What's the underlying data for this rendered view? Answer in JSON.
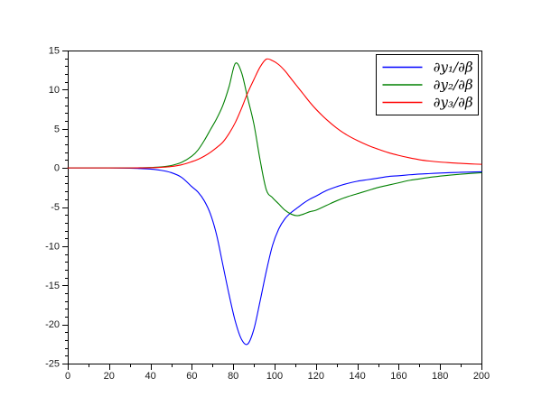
{
  "figure": {
    "background": "#ffffff",
    "frame_color": "#000000",
    "tick_label_color": "#1a1a1a"
  },
  "chart_data": {
    "type": "line",
    "title": "",
    "xlabel": "",
    "ylabel": "",
    "xlim": [
      0,
      200
    ],
    "ylim": [
      -25,
      15
    ],
    "x_major_tick_step": 20,
    "x_minor_tick_step": 10,
    "y_major_tick_step": 5,
    "y_minor_tick_step": 1,
    "x_tick_labels": [
      "0",
      "20",
      "40",
      "60",
      "80",
      "100",
      "120",
      "140",
      "160",
      "180",
      "200"
    ],
    "y_tick_labels": [
      "15",
      "10",
      "5",
      "0",
      "-5",
      "-10",
      "-15",
      "-20",
      "-25"
    ],
    "grid": false,
    "legend": {
      "position": "top-right",
      "entries": [
        {
          "label": "∂y₁/∂β",
          "color": "#0000ff"
        },
        {
          "label": "∂y₂/∂β",
          "color": "#008000"
        },
        {
          "label": "∂y₃/∂β",
          "color": "#ff0000"
        }
      ]
    },
    "x": [
      0,
      10,
      20,
      30,
      35,
      40,
      45,
      50,
      55,
      60,
      63,
      66,
      69,
      72,
      75,
      78,
      81,
      84,
      87,
      90,
      93,
      96,
      99,
      102,
      105,
      108,
      111,
      114,
      117,
      120,
      125,
      130,
      135,
      140,
      145,
      150,
      155,
      160,
      165,
      170,
      175,
      180,
      185,
      190,
      195,
      200
    ],
    "series": [
      {
        "name": "∂y₁/∂β",
        "color": "#0000ff",
        "values": [
          0,
          0,
          0,
          -0.03,
          -0.08,
          -0.15,
          -0.3,
          -0.6,
          -1.2,
          -2.4,
          -3.1,
          -4.2,
          -5.9,
          -8.6,
          -12.4,
          -16.2,
          -19.6,
          -21.9,
          -22.5,
          -20.6,
          -17.0,
          -13.2,
          -9.9,
          -7.8,
          -6.5,
          -5.7,
          -5.1,
          -4.5,
          -4.0,
          -3.6,
          -2.9,
          -2.4,
          -2.0,
          -1.7,
          -1.5,
          -1.3,
          -1.1,
          -1.0,
          -0.88,
          -0.78,
          -0.72,
          -0.66,
          -0.6,
          -0.56,
          -0.52,
          -0.5
        ]
      },
      {
        "name": "∂y₂/∂β",
        "color": "#008000",
        "values": [
          0,
          0,
          0,
          0,
          0.02,
          0.05,
          0.12,
          0.3,
          0.7,
          1.5,
          2.3,
          3.5,
          4.9,
          6.3,
          8.0,
          10.4,
          13.35,
          12.2,
          8.9,
          5.6,
          1.0,
          -2.8,
          -3.8,
          -4.6,
          -5.4,
          -5.9,
          -6.1,
          -5.9,
          -5.6,
          -5.4,
          -4.8,
          -4.2,
          -3.7,
          -3.3,
          -2.9,
          -2.5,
          -2.2,
          -1.9,
          -1.6,
          -1.4,
          -1.2,
          -1.05,
          -0.92,
          -0.8,
          -0.7,
          -0.62
        ]
      },
      {
        "name": "∂y₃/∂β",
        "color": "#ff0000",
        "values": [
          0,
          0,
          0,
          0,
          0.01,
          0.02,
          0.08,
          0.18,
          0.4,
          0.8,
          1.1,
          1.5,
          2.0,
          2.6,
          3.3,
          4.4,
          5.8,
          7.6,
          9.6,
          11.3,
          12.9,
          13.9,
          13.7,
          13.2,
          12.4,
          11.4,
          10.4,
          9.4,
          8.4,
          7.5,
          6.2,
          5.1,
          4.2,
          3.5,
          2.9,
          2.4,
          1.95,
          1.6,
          1.3,
          1.05,
          0.88,
          0.75,
          0.66,
          0.58,
          0.51,
          0.46
        ]
      }
    ]
  }
}
